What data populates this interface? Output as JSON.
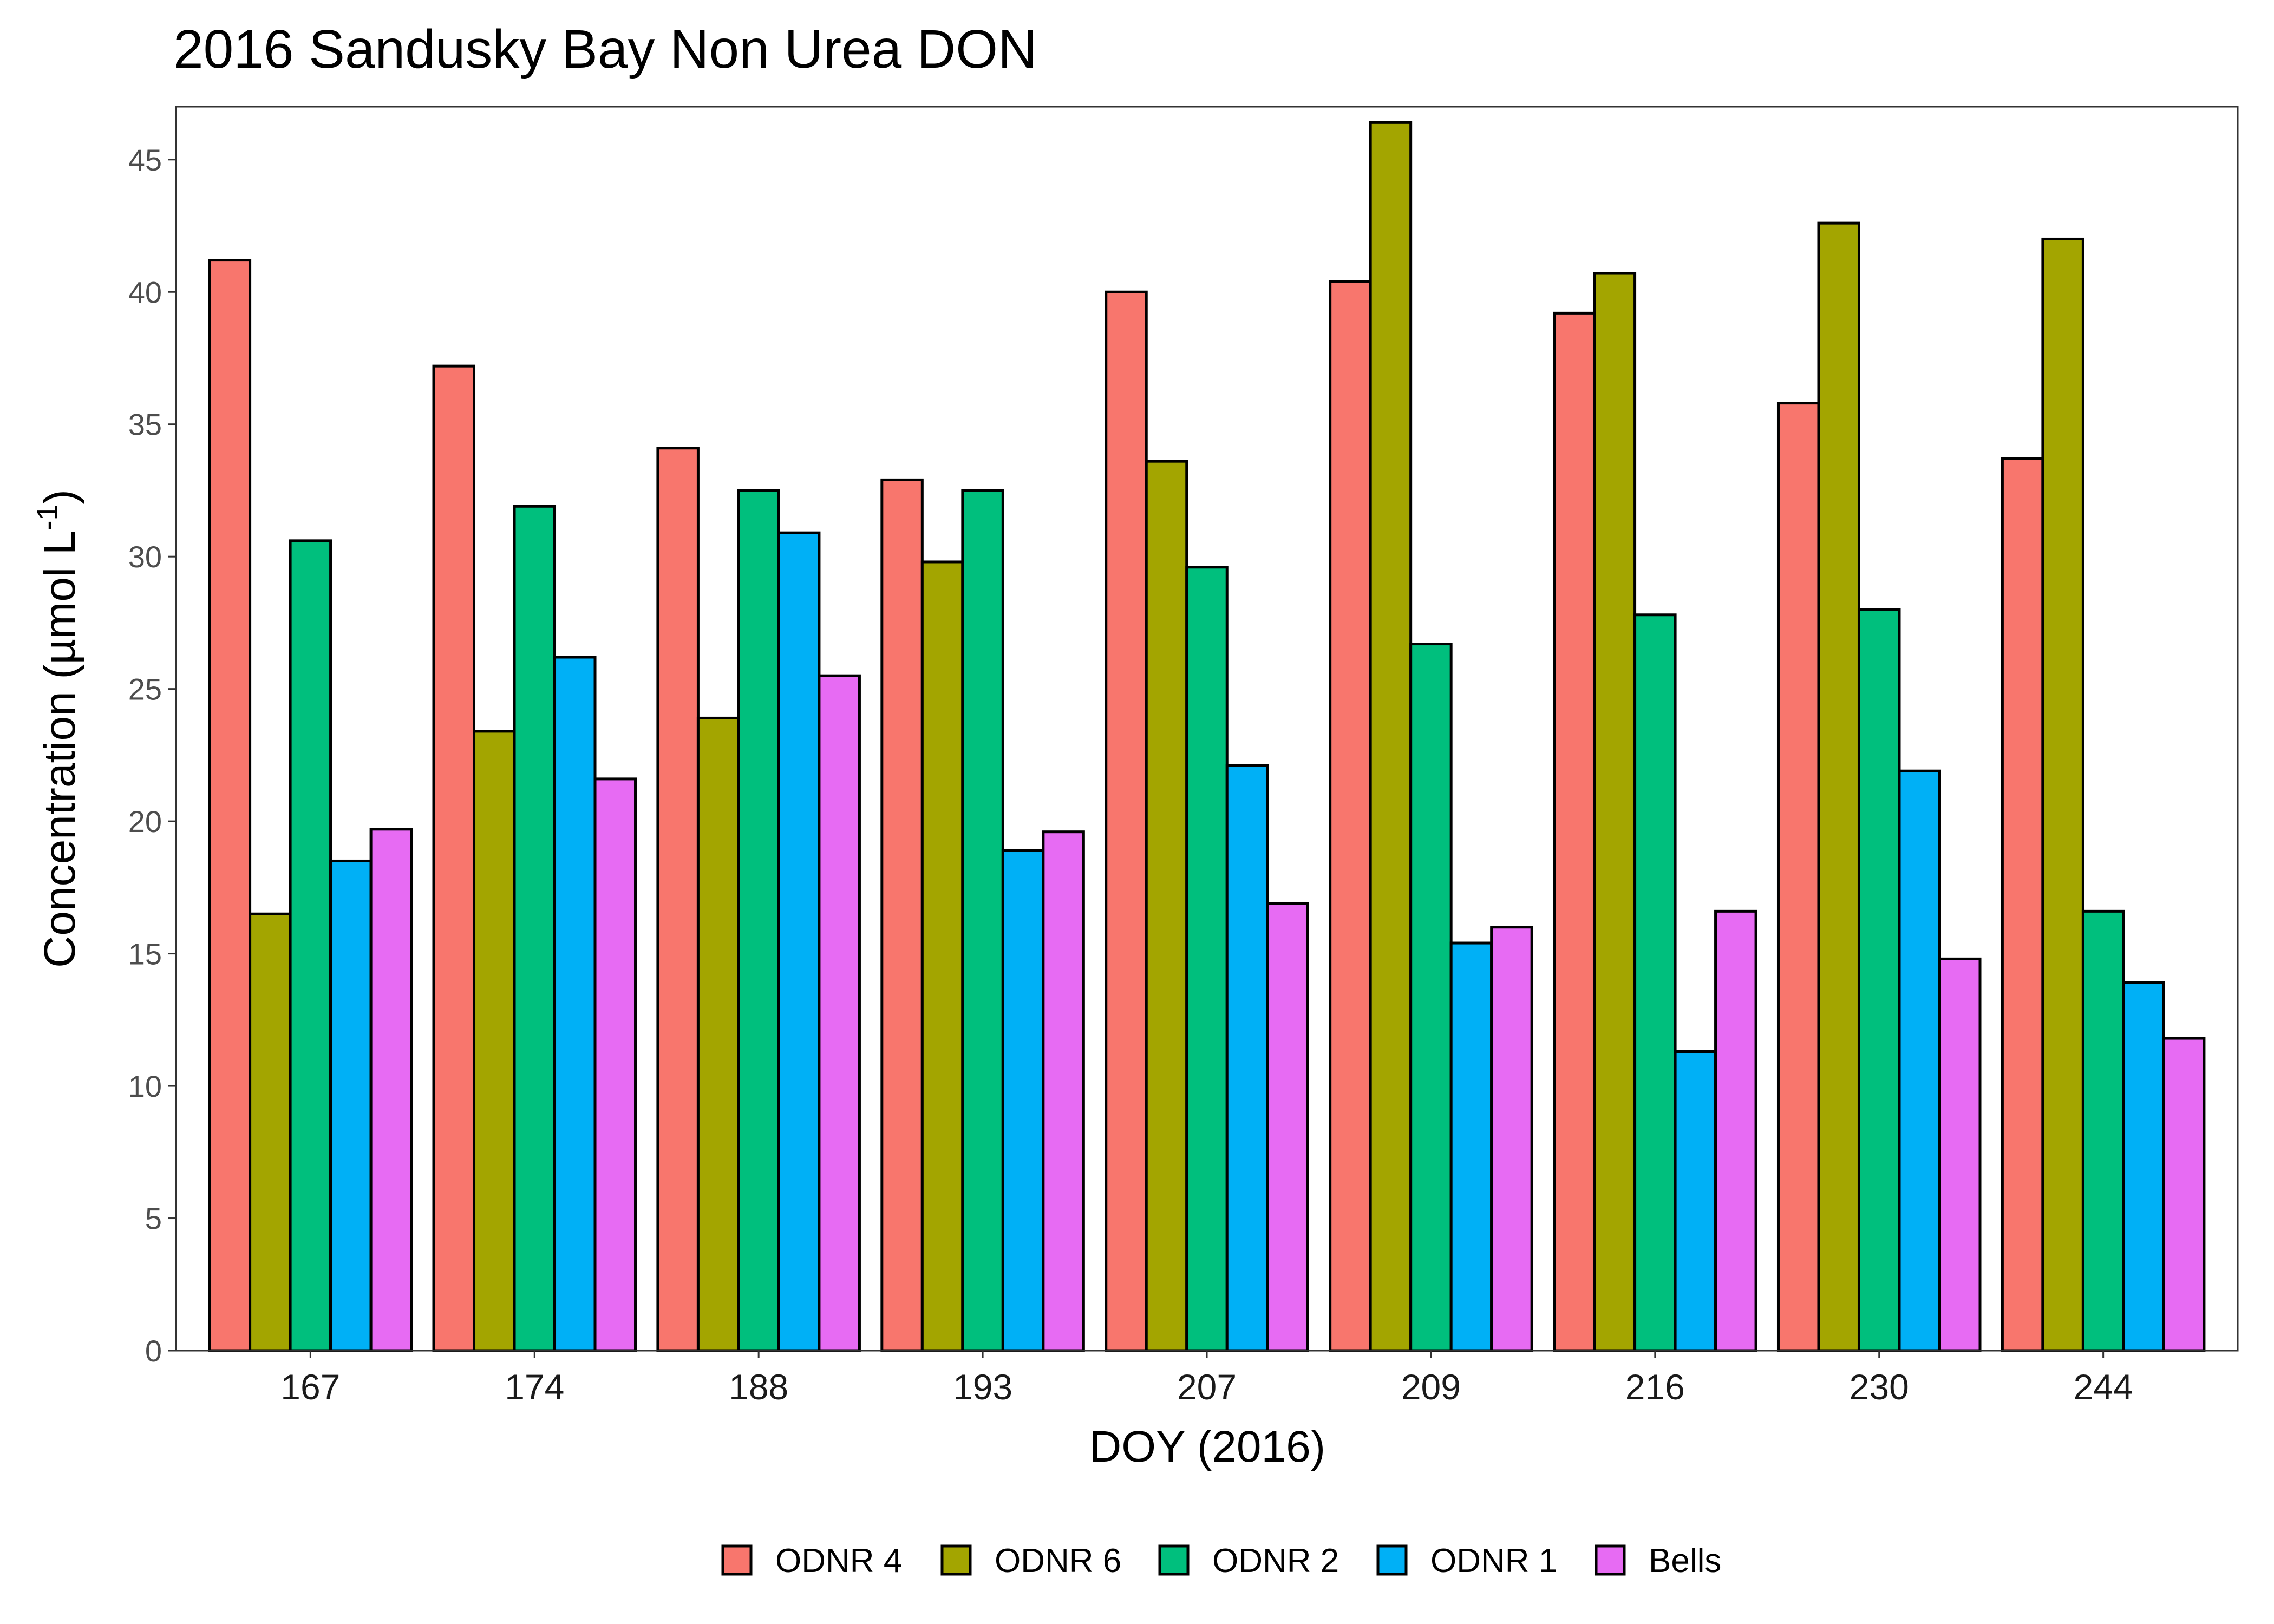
{
  "chart_data": {
    "type": "bar",
    "title": "2016 Sandusky Bay Non Urea DON",
    "xlabel": "DOY (2016)",
    "ylabel": {
      "prefix": "Concentration (µmol L",
      "superscript": "-1",
      "suffix": ")"
    },
    "categories": [
      "167",
      "174",
      "188",
      "193",
      "207",
      "209",
      "216",
      "230",
      "244"
    ],
    "ylim": [
      0,
      47
    ],
    "yticks": [
      0,
      5,
      10,
      15,
      20,
      25,
      30,
      35,
      40,
      45
    ],
    "grid": false,
    "legend_position": "bottom",
    "series": [
      {
        "name": "ODNR 4",
        "color": "#f8766d",
        "values": [
          41.2,
          37.2,
          34.1,
          32.9,
          40.0,
          40.4,
          39.2,
          35.8,
          33.7
        ]
      },
      {
        "name": "ODNR 6",
        "color": "#a3a500",
        "values": [
          16.5,
          23.4,
          23.9,
          29.8,
          33.6,
          46.4,
          40.7,
          42.6,
          42.0
        ]
      },
      {
        "name": "ODNR 2",
        "color": "#00bf7d",
        "values": [
          30.6,
          31.9,
          32.5,
          32.5,
          29.6,
          26.7,
          27.8,
          28.0,
          16.6
        ]
      },
      {
        "name": "ODNR 1",
        "color": "#00b0f6",
        "values": [
          18.5,
          26.2,
          30.9,
          18.9,
          22.1,
          15.4,
          11.3,
          21.9,
          13.9
        ]
      },
      {
        "name": "Bells",
        "color": "#e76bf3",
        "values": [
          19.7,
          21.6,
          25.5,
          19.6,
          16.9,
          16.0,
          16.6,
          14.8,
          11.8
        ]
      }
    ]
  }
}
